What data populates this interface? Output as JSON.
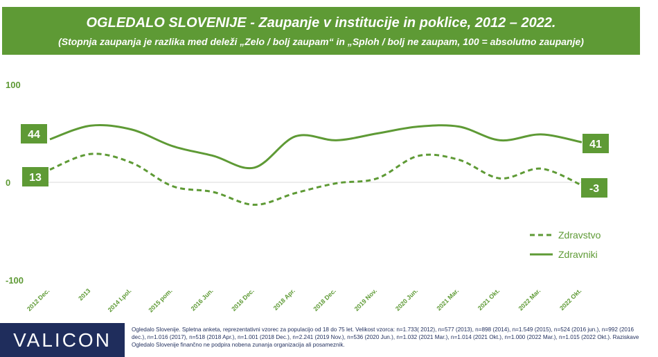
{
  "header": {
    "title": "OGLEDALO SLOVENIJE - Zaupanje v institucije in poklice, 2012 – 2022.",
    "subtitle": "(Stopnja zaupanja je razlika med deleži „Zelo / bolj zaupam“ in „Sploh / bolj ne zaupam, 100 = absolutno zaupanje)"
  },
  "logo": {
    "text": "VALICON"
  },
  "footnote": "Ogledalo Slovenije. Spletna anketa, reprezentativni vzorec za populacijo od 18 do 75 let. Velikost vzorca: n=1.733( 2012), n=577 (2013), n=898 (2014), n=1.549 (2015), n=524 (2016 jun.), n=992 (2016 dec.), n=1.016 (2017), n=518 (2018 Apr.), n=1.001 (2018 Dec.), n=2.241 (2019 Nov.), n=536 (2020 Jun.), n=1.032 (2021 Mar.), n=1.014 (2021 Okt.), n=1.000 (2022 Mar.), n=1.015 (2022 Okt.). Raziskave Ogledalo Slovenije finančno ne podpira nobena zunanja organizacija ali posameznik.",
  "colors": {
    "accent": "#5e9a35",
    "brand": "#1f2d5c",
    "zero_line": "#d9d9d9"
  },
  "chart_data": {
    "type": "line",
    "categories": [
      "2012 Dec.",
      "2013",
      "2014 I.pol.",
      "2015 pom.",
      "2016 Jun.",
      "2016 Dec.",
      "2018 Apr.",
      "2018 Dec.",
      "2019 Nov.",
      "2020 Jun.",
      "2021 Mar.",
      "2021 Okt.",
      "2022 Mar.",
      "2022 Okt."
    ],
    "y_tick_labels": [
      "100",
      "0",
      "-100"
    ],
    "ylim": [
      -100,
      100
    ],
    "grid": false,
    "legend_position": "right",
    "series": [
      {
        "name": "Zdravstvo",
        "style": "dashed",
        "values": [
          13,
          29,
          20,
          -4,
          -10,
          -23,
          -11,
          -1,
          4,
          27,
          23,
          4,
          14,
          -3
        ]
      },
      {
        "name": "Zdravniki",
        "style": "solid",
        "values": [
          44,
          58,
          54,
          37,
          27,
          15,
          47,
          43,
          50,
          57,
          57,
          43,
          49,
          41
        ]
      }
    ],
    "end_labels": {
      "Zdravstvo": {
        "first": "13",
        "last": "-3"
      },
      "Zdravniki": {
        "first": "44",
        "last": "41"
      }
    }
  }
}
